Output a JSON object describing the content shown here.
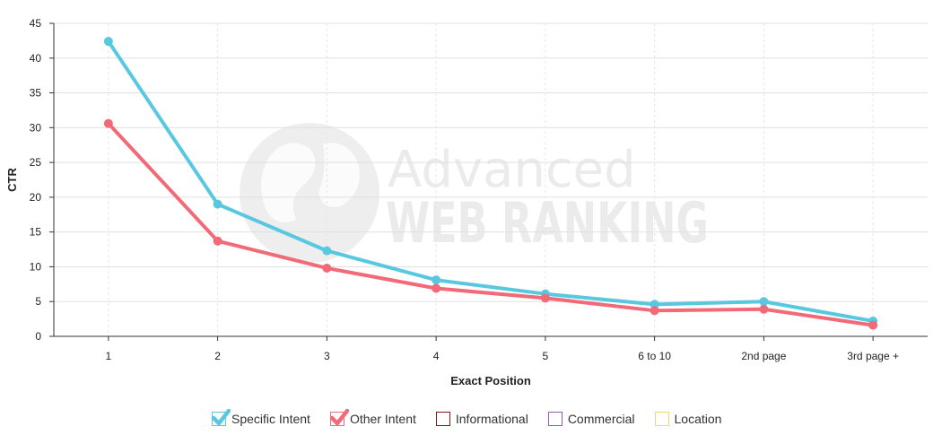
{
  "chart_data": {
    "type": "line",
    "title": "",
    "xlabel": "Exact Position",
    "ylabel": "CTR",
    "categories": [
      "1",
      "2",
      "3",
      "4",
      "5",
      "6 to 10",
      "2nd page",
      "3rd page +"
    ],
    "ylim": [
      0,
      45
    ],
    "yticks": [
      0,
      5,
      10,
      15,
      20,
      25,
      30,
      35,
      40,
      45
    ],
    "grid": true,
    "legend_position": "bottom",
    "series": [
      {
        "name": "Specific Intent",
        "color": "#57c8e0",
        "values": [
          42.4,
          19.0,
          12.3,
          8.1,
          6.1,
          4.6,
          5.0,
          2.2
        ],
        "checked": true
      },
      {
        "name": "Other Intent",
        "color": "#f26a78",
        "values": [
          30.6,
          13.7,
          9.8,
          6.9,
          5.5,
          3.7,
          3.9,
          1.6
        ],
        "checked": true
      }
    ],
    "legend_inactive": [
      {
        "name": "Informational",
        "color": "#7a1a1a"
      },
      {
        "name": "Commercial",
        "color": "#9b59b6"
      },
      {
        "name": "Location",
        "color": "#f5d76e"
      }
    ]
  },
  "watermark": {
    "line1": "Advanced",
    "line2": "WEB RANKING",
    "icon": "globe-icon"
  }
}
